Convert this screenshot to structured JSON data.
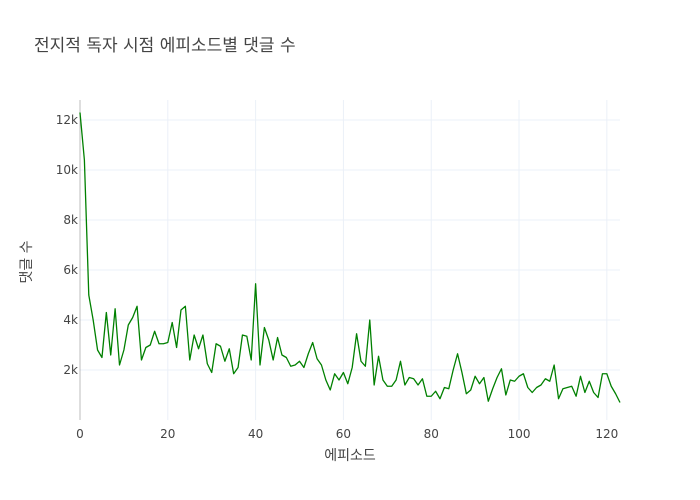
{
  "chart_data": {
    "type": "line",
    "title": "전지적 독자 시점 에피소드별 댓글 수",
    "xlabel": "에피소드",
    "ylabel": "댓글 수",
    "xlim": [
      0,
      123
    ],
    "ylim": [
      0,
      12800
    ],
    "x_ticks": [
      0,
      20,
      40,
      60,
      80,
      100,
      120
    ],
    "y_ticks": [
      2000,
      4000,
      6000,
      8000,
      10000,
      12000
    ],
    "x_tick_labels": [
      "0",
      "20",
      "40",
      "60",
      "80",
      "100",
      "120"
    ],
    "y_tick_labels": [
      "2k",
      "4k",
      "6k",
      "8k",
      "10k",
      "12k"
    ],
    "grid": true,
    "line_color": "#008000",
    "series": [
      {
        "x": [
          0,
          1,
          2,
          3,
          4,
          5,
          6,
          7,
          8,
          9,
          10,
          11,
          12,
          13,
          14,
          15,
          16,
          17,
          18,
          19,
          20,
          21,
          22,
          23,
          24,
          25,
          26,
          27,
          28,
          29,
          30,
          31,
          32,
          33,
          34,
          35,
          36,
          37,
          38,
          39,
          40,
          41,
          42,
          43,
          44,
          45,
          46,
          47,
          48,
          49,
          50,
          51,
          52,
          53,
          54,
          55,
          56,
          57,
          58,
          59,
          60,
          61,
          62,
          63,
          64,
          65,
          66,
          67,
          68,
          69,
          70,
          71,
          72,
          73,
          74,
          75,
          76,
          77,
          78,
          79,
          80,
          81,
          82,
          83,
          84,
          85,
          86,
          87,
          88,
          89,
          90,
          91,
          92,
          93,
          94,
          95,
          96,
          97,
          98,
          99,
          100,
          101,
          102,
          103,
          104,
          105,
          106,
          107,
          108,
          109,
          110,
          111,
          112,
          113,
          114,
          115,
          116,
          117,
          118,
          119,
          120,
          121,
          122,
          123
        ],
        "values": [
          12300,
          10400,
          5000,
          4000,
          2800,
          2500,
          4300,
          2600,
          4450,
          2200,
          2800,
          3800,
          4100,
          4550,
          2400,
          2900,
          3000,
          3550,
          3050,
          3050,
          3100,
          3900,
          2900,
          4400,
          4550,
          2400,
          3400,
          2850,
          3400,
          2250,
          1900,
          3050,
          2950,
          2350,
          2850,
          1850,
          2100,
          3400,
          3350,
          2400,
          5450,
          2200,
          3700,
          3200,
          2400,
          3300,
          2600,
          2500,
          2150,
          2200,
          2350,
          2100,
          2650,
          3100,
          2450,
          2200,
          1600,
          1200,
          1850,
          1600,
          1900,
          1450,
          2100,
          3450,
          2350,
          2150,
          4000,
          1400,
          2550,
          1600,
          1350,
          1350,
          1600,
          2350,
          1400,
          1700,
          1650,
          1400,
          1650,
          950,
          950,
          1150,
          850,
          1300,
          1250,
          2000,
          2650,
          1900,
          1050,
          1200,
          1750,
          1450,
          1700,
          750,
          1250,
          1700,
          2050,
          1000,
          1600,
          1550,
          1750,
          1850,
          1300,
          1100,
          1300,
          1400,
          1650,
          1550,
          2200,
          850,
          1250,
          1300,
          1350,
          950,
          1750,
          1100,
          1550,
          1100,
          900,
          1850,
          1850,
          1350,
          1050,
          700
        ]
      }
    ]
  }
}
